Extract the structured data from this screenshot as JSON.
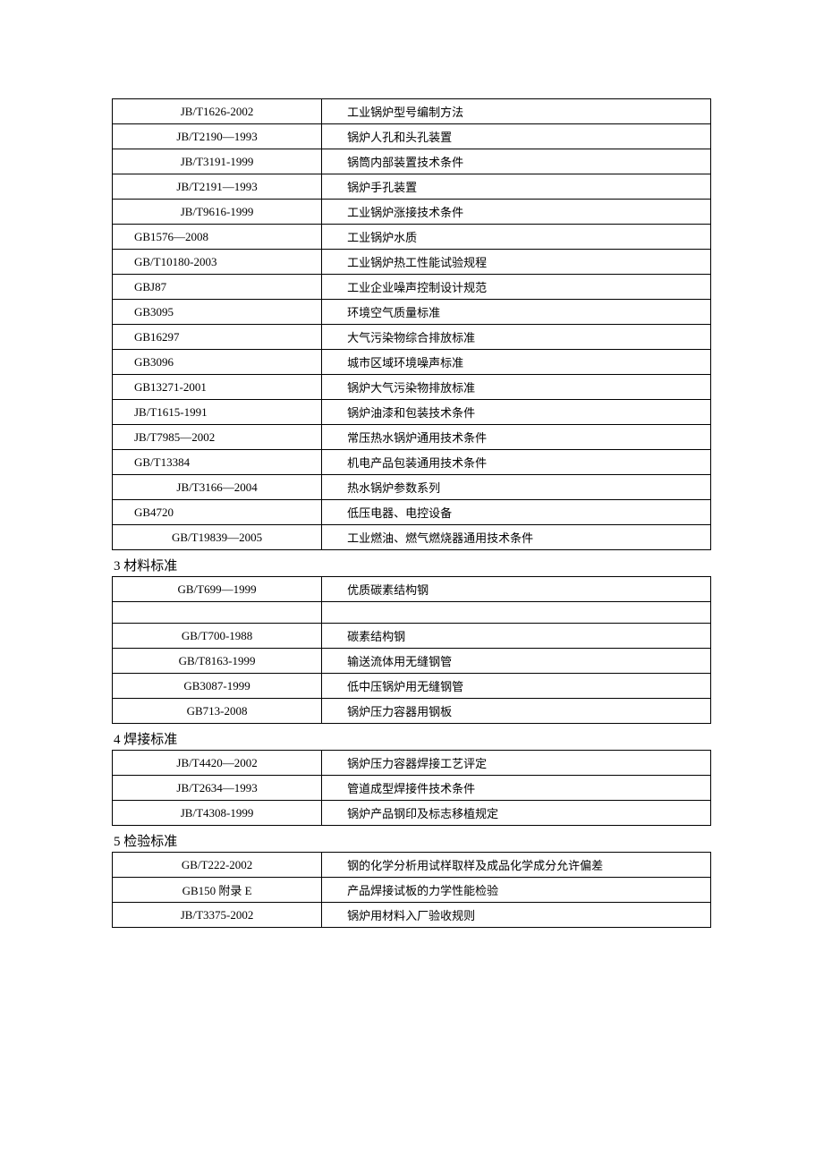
{
  "page": {
    "background_color": "#ffffff",
    "text_color": "#000000",
    "border_color": "#000000",
    "font_family": "SimSun",
    "body_fontsize": 13,
    "heading_fontsize": 15
  },
  "tables": {
    "table1": {
      "column_widths": [
        "35%",
        "65%"
      ],
      "rows": [
        {
          "code": "JB/T1626-2002",
          "desc": "工业锅炉型号编制方法",
          "align": "center"
        },
        {
          "code": "JB/T2190—1993",
          "desc": "锅炉人孔和头孔装置",
          "align": "center"
        },
        {
          "code": "JB/T3191-1999",
          "desc": "锅筒内部装置技术条件",
          "align": "center"
        },
        {
          "code": "JB/T2191—1993",
          "desc": "锅炉手孔装置",
          "align": "center"
        },
        {
          "code": "JB/T9616-1999",
          "desc": "工业锅炉涨接技术条件",
          "align": "center"
        },
        {
          "code": "GB1576—2008",
          "desc": "工业锅炉水质",
          "align": "left"
        },
        {
          "code": "GB/T10180-2003",
          "desc": "工业锅炉热工性能试验规程",
          "align": "left"
        },
        {
          "code": "GBJ87",
          "desc": "工业企业噪声控制设计规范",
          "align": "left"
        },
        {
          "code": "GB3095",
          "desc": "环境空气质量标准",
          "align": "left"
        },
        {
          "code": "GB16297",
          "desc": "大气污染物综合排放标准",
          "align": "left"
        },
        {
          "code": "GB3096",
          "desc": "城市区域环境噪声标准",
          "align": "left"
        },
        {
          "code": "GB13271-2001",
          "desc": "锅炉大气污染物排放标准",
          "align": "left"
        },
        {
          "code": "JB/T1615-1991",
          "desc": "锅炉油漆和包装技术条件",
          "align": "left"
        },
        {
          "code": "JB/T7985—2002",
          "desc": "常压热水锅炉通用技术条件",
          "align": "left"
        },
        {
          "code": "GB/T13384",
          "desc": "机电产品包装通用技术条件",
          "align": "left"
        },
        {
          "code": "JB/T3166—2004",
          "desc": "热水锅炉参数系列",
          "align": "center"
        },
        {
          "code": "GB4720",
          "desc": "低压电器、电控设备",
          "align": "left"
        },
        {
          "code": "GB/T19839—2005",
          "desc": "工业燃油、燃气燃烧器通用技术条件",
          "align": "center"
        }
      ]
    },
    "section3": {
      "heading": "3 材料标准",
      "column_widths": [
        "35%",
        "65%"
      ],
      "rows": [
        {
          "code": "GB/T699—1999",
          "desc": "优质碳素结构钢",
          "align": "center"
        },
        {
          "code": "",
          "desc": "",
          "empty": true
        },
        {
          "code": "GB/T700-1988",
          "desc": "碳素结构钢",
          "align": "center"
        },
        {
          "code": "GB/T8163-1999",
          "desc": "输送流体用无缝钢管",
          "align": "center"
        },
        {
          "code": "GB3087-1999",
          "desc": "低中压锅炉用无缝钢管",
          "align": "center"
        },
        {
          "code": "GB713-2008",
          "desc": "锅炉压力容器用钢板",
          "align": "center"
        }
      ]
    },
    "section4": {
      "heading": "4 焊接标准",
      "column_widths": [
        "35%",
        "65%"
      ],
      "rows": [
        {
          "code": "JB/T4420—2002",
          "desc": "锅炉压力容器焊接工艺评定",
          "align": "center"
        },
        {
          "code": "JB/T2634—1993",
          "desc": "管道成型焊接件技术条件",
          "align": "center"
        },
        {
          "code": "JB/T4308-1999",
          "desc": "锅炉产品钢印及标志移植规定",
          "align": "center"
        }
      ]
    },
    "section5": {
      "heading": "5 检验标准",
      "column_widths": [
        "35%",
        "65%"
      ],
      "rows": [
        {
          "code": "GB/T222-2002",
          "desc": "钢的化学分析用试样取样及成品化学成分允许偏差",
          "align": "center"
        },
        {
          "code": "GB150 附录 E",
          "desc": "产品焊接试板的力学性能检验",
          "align": "center"
        },
        {
          "code": "JB/T3375-2002",
          "desc": "锅炉用材料入厂验收规则",
          "align": "center"
        }
      ]
    }
  }
}
